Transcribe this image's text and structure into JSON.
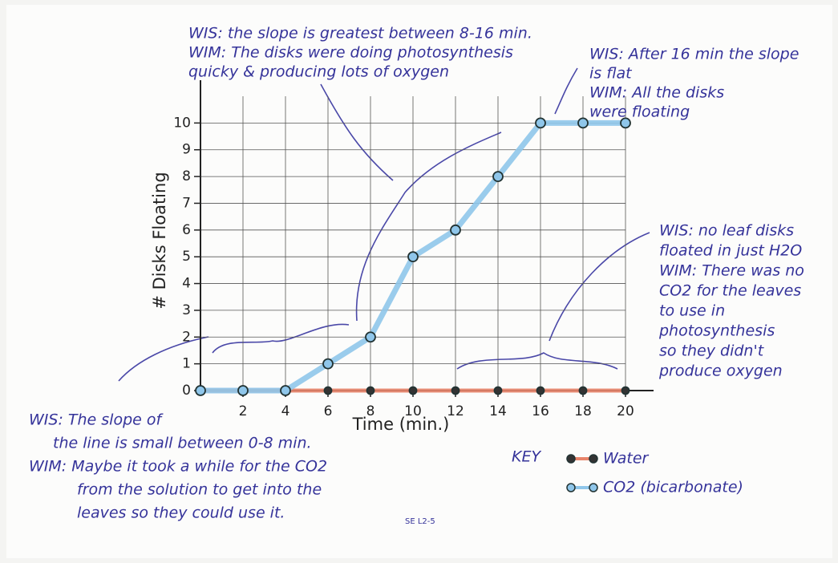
{
  "chart_data": {
    "type": "line",
    "x_label": "Time (min.)",
    "y_label": "# Disks Floating",
    "x": [
      0,
      2,
      4,
      6,
      8,
      10,
      12,
      14,
      16,
      18,
      20
    ],
    "series": [
      {
        "name": "Water",
        "color": "#e8846a",
        "values": [
          0,
          0,
          0,
          0,
          0,
          0,
          0,
          0,
          0,
          0,
          0
        ]
      },
      {
        "name": "CO2 (bicarbonate)",
        "color": "#8fc6ea",
        "values": [
          0,
          0,
          0,
          1,
          2,
          5,
          6,
          8,
          10,
          10,
          10
        ]
      }
    ],
    "xlim": [
      0,
      20
    ],
    "ylim": [
      0,
      11
    ],
    "xticks": [
      2,
      4,
      6,
      8,
      10,
      12,
      14,
      16,
      18,
      20
    ],
    "yticks": [
      0,
      1,
      2,
      3,
      4,
      5,
      6,
      7,
      8,
      9,
      10
    ],
    "grid": true,
    "legend_title": "KEY",
    "annotations": [
      {
        "lines": [
          "WIS: the slope is greatest between 8-16 min.",
          "WIM: The disks were doing photosynthesis",
          "quicky & producing lots of oxygen"
        ]
      },
      {
        "lines": [
          "WIS: After 16 min the slope",
          "is flat",
          "WIM: All the disks",
          "were floating"
        ]
      },
      {
        "lines": [
          "WIS: no leaf disks",
          "floated in just H2O",
          "WIM: There was no",
          "CO2 for the leaves",
          "to use in",
          "photosynthesis",
          "so they didn't",
          "produce oxygen"
        ]
      },
      {
        "lines": [
          "WIS: The slope of",
          "the line is small between 0-8 min.",
          "WIM: Maybe it took a while for the CO2",
          "from the solution to get into the",
          "leaves so they could use it."
        ]
      },
      {
        "lines": [
          "SE L2-5"
        ]
      }
    ]
  }
}
